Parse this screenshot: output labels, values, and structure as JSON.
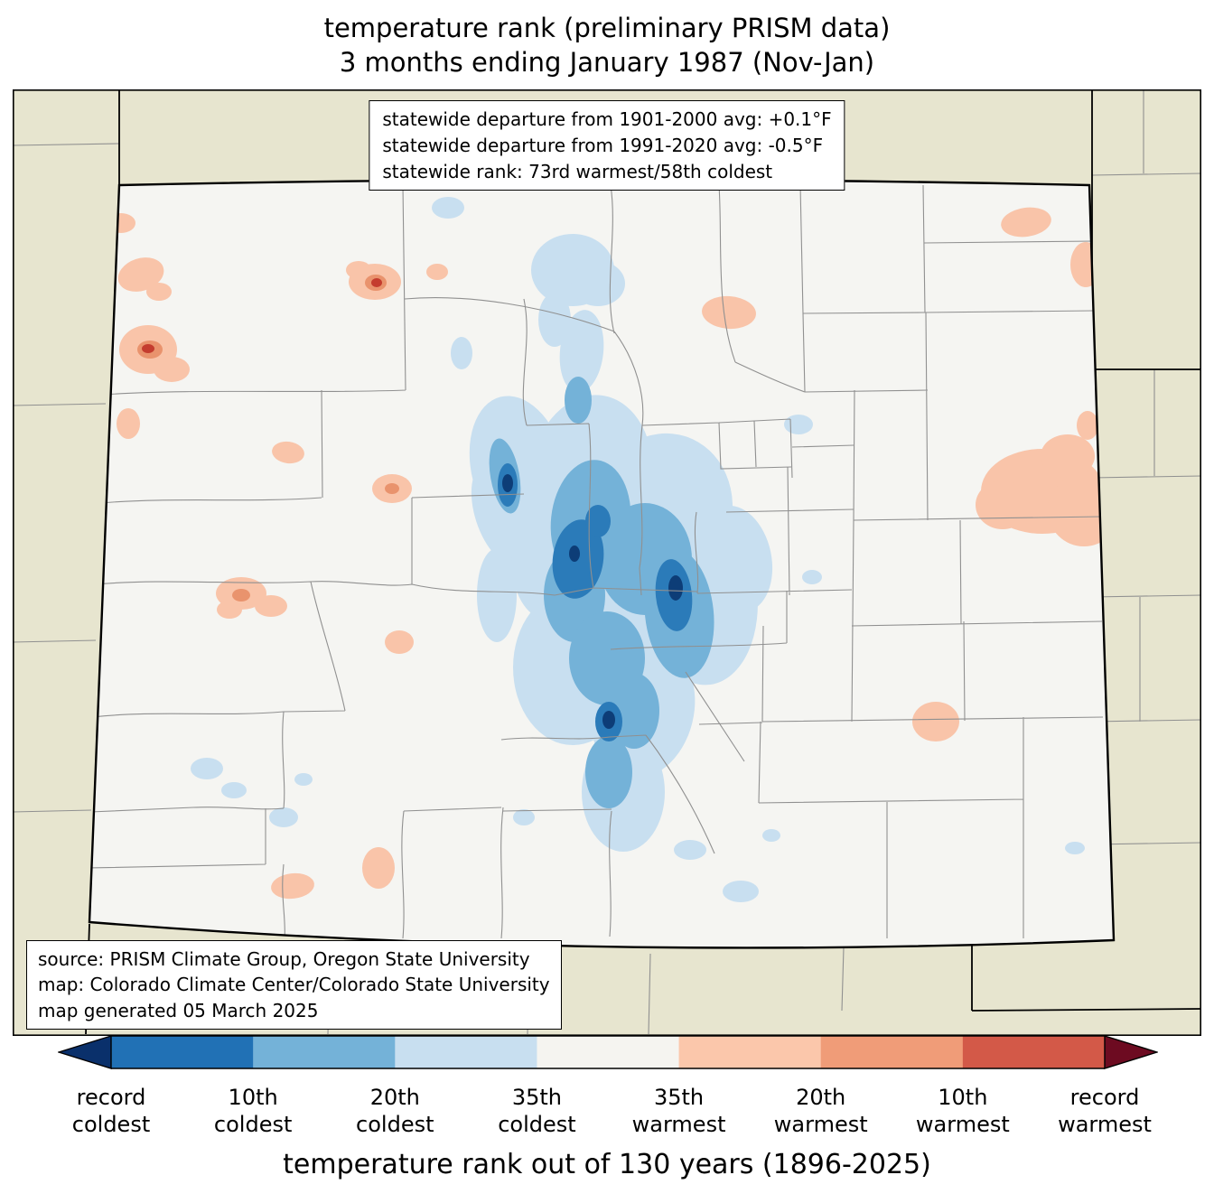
{
  "title": {
    "line1": "temperature rank (preliminary PRISM data)",
    "line2": "3 months ending January 1987 (Nov-Jan)"
  },
  "stats_box": {
    "lines": [
      "statewide departure from 1901-2000 avg: +0.1°F",
      "statewide departure from 1991-2020 avg: -0.5°F",
      "statewide rank: 73rd warmest/58th coldest"
    ]
  },
  "source_box": {
    "lines": [
      "source: PRISM Climate Group, Oregon State University",
      "map: Colorado Climate Center/Colorado State University",
      "map generated 05 March 2025"
    ]
  },
  "colorbar": {
    "caption": "temperature rank out of 130 years (1896-2025)",
    "arrow_left_color": "#0a306b",
    "arrow_right_color": "#6d0b21",
    "segment_colors": [
      "#2171b5",
      "#74b2d8",
      "#c8dff0",
      "#f5f4f0",
      "#fbc7ab",
      "#f09c78",
      "#d35948"
    ],
    "tick_labels": [
      {
        "line1": "record",
        "line2": "coldest"
      },
      {
        "line1": "10th",
        "line2": "coldest"
      },
      {
        "line1": "20th",
        "line2": "coldest"
      },
      {
        "line1": "35th",
        "line2": "coldest"
      },
      {
        "line1": "35th",
        "line2": "warmest"
      },
      {
        "line1": "20th",
        "line2": "warmest"
      },
      {
        "line1": "10th",
        "line2": "warmest"
      },
      {
        "line1": "record",
        "line2": "warmest"
      }
    ]
  },
  "map": {
    "outside_fill": "#e7e5cf",
    "state_fill": "#f5f5f2",
    "county_line_color": "#909090",
    "state_border_color": "#000000",
    "cold_colors": [
      "#c8dff0",
      "#74b2d8",
      "#2b7bb9",
      "#0d3d77"
    ],
    "warm_colors": [
      "#f9c4a9",
      "#e9936d",
      "#c43c2e"
    ]
  }
}
